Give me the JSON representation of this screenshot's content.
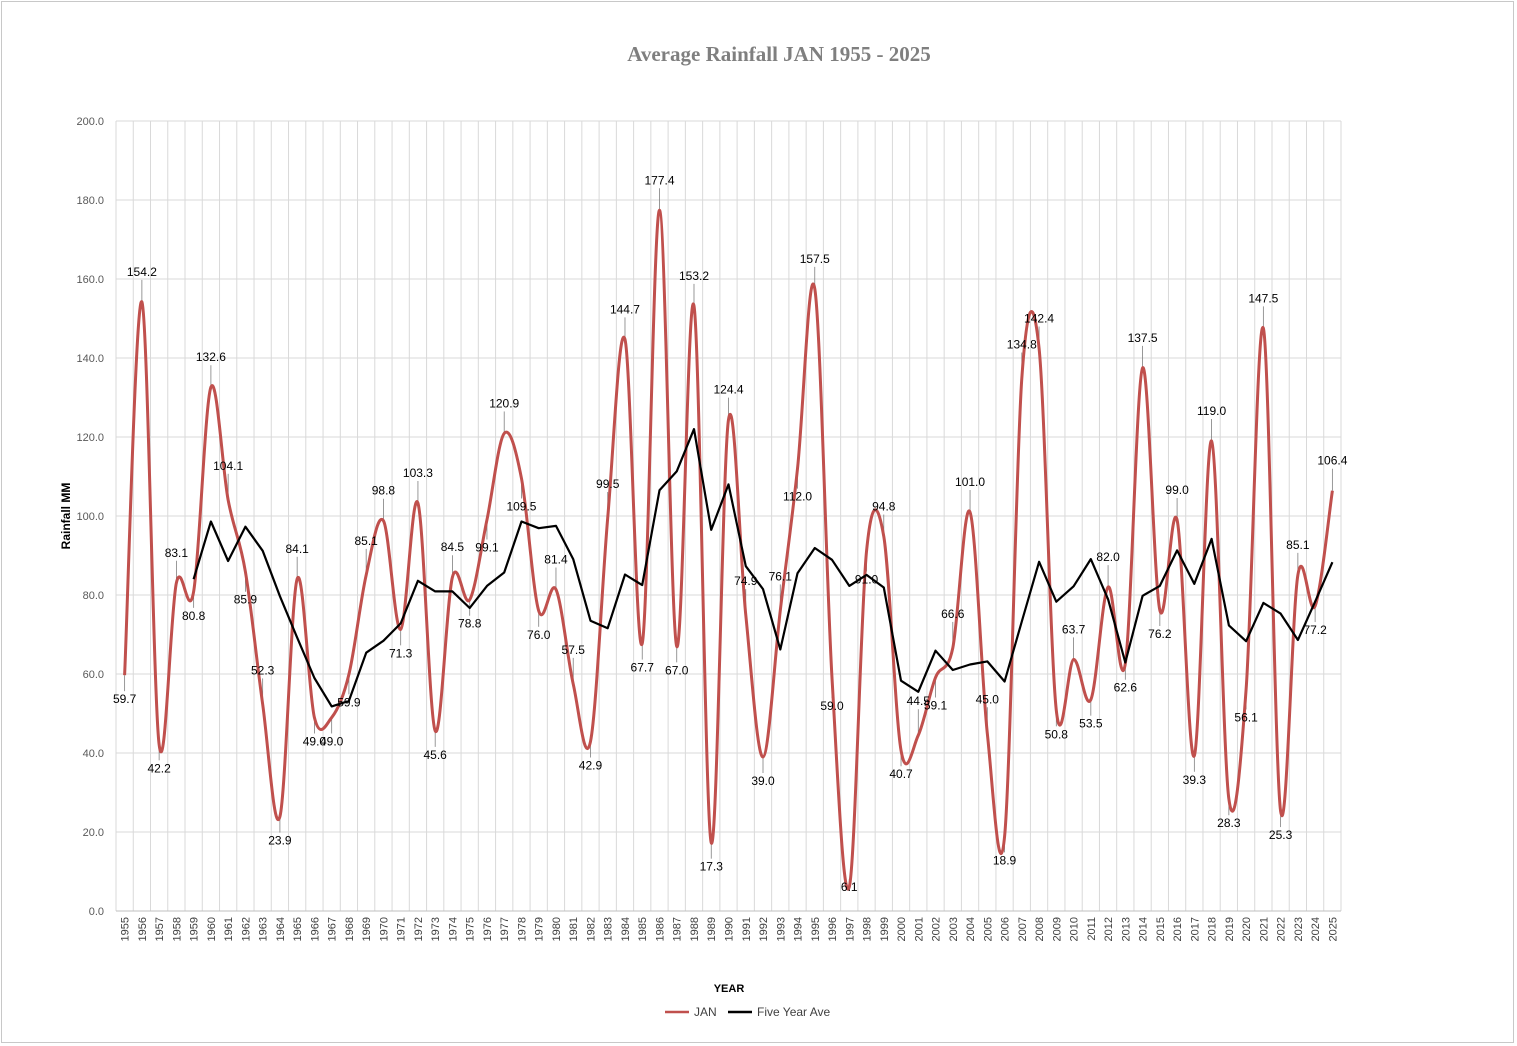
{
  "chart_data": {
    "type": "line",
    "title": "Average Rainfall JAN 1955 - 2025",
    "xlabel": "YEAR",
    "ylabel": "Rainfall MM",
    "ylim": [
      0,
      200
    ],
    "yticks": [
      "0.0",
      "20.0",
      "40.0",
      "60.0",
      "80.0",
      "100.0",
      "120.0",
      "140.0",
      "160.0",
      "180.0",
      "200.0"
    ],
    "x": [
      1955,
      1956,
      1957,
      1958,
      1959,
      1960,
      1961,
      1962,
      1963,
      1964,
      1965,
      1966,
      1967,
      1968,
      1969,
      1970,
      1971,
      1972,
      1973,
      1974,
      1975,
      1976,
      1977,
      1978,
      1979,
      1980,
      1981,
      1982,
      1983,
      1984,
      1985,
      1986,
      1987,
      1988,
      1989,
      1990,
      1991,
      1992,
      1993,
      1994,
      1995,
      1996,
      1997,
      1998,
      1999,
      2000,
      2001,
      2002,
      2003,
      2004,
      2005,
      2006,
      2007,
      2008,
      2009,
      2010,
      2011,
      2012,
      2013,
      2014,
      2015,
      2016,
      2017,
      2018,
      2019,
      2020,
      2021,
      2022,
      2023,
      2024,
      2025
    ],
    "grid": true,
    "legend_position": "bottom",
    "series": [
      {
        "name": "JAN",
        "color": "#c0504d",
        "smooth": true,
        "values": [
          59.7,
          154.2,
          42.2,
          83.1,
          80.8,
          132.6,
          104.1,
          85.9,
          52.3,
          23.9,
          84.1,
          49.0,
          49.0,
          59.9,
          85.1,
          98.8,
          71.3,
          103.3,
          45.6,
          84.5,
          78.8,
          99.1,
          120.9,
          109.5,
          76.0,
          81.4,
          57.5,
          42.9,
          99.5,
          144.7,
          67.7,
          177.4,
          67.0,
          153.2,
          17.3,
          124.4,
          74.9,
          39.0,
          76.1,
          112.0,
          157.5,
          59.0,
          6.1,
          91.0,
          94.8,
          40.7,
          44.5,
          59.1,
          66.6,
          101.0,
          45.0,
          18.9,
          134.8,
          142.4,
          50.8,
          63.7,
          53.5,
          82.0,
          62.6,
          137.5,
          76.2,
          99.0,
          39.3,
          119.0,
          28.3,
          56.1,
          147.5,
          25.3,
          85.1,
          77.2,
          106.4
        ]
      },
      {
        "name": "Five Year Ave",
        "color": "#000000",
        "smooth": false,
        "values": [
          null,
          null,
          null,
          null,
          84.0,
          98.6,
          88.6,
          97.3,
          91.2,
          79.7,
          69.2,
          59.0,
          51.8,
          53.2,
          65.4,
          68.4,
          72.8,
          83.6,
          80.9,
          80.9,
          76.7,
          82.3,
          85.7,
          98.6,
          96.9,
          97.5,
          89.1,
          73.5,
          71.6,
          85.2,
          82.5,
          106.5,
          111.3,
          122.0,
          96.5,
          108.0,
          87.3,
          81.5,
          66.2,
          85.5,
          91.9,
          88.9,
          82.3,
          85.1,
          81.9,
          58.3,
          55.5,
          65.9,
          61.0,
          62.4,
          63.2,
          58.1,
          73.3,
          88.4,
          78.3,
          82.2,
          89.1,
          78.9,
          62.9,
          79.8,
          82.3,
          91.3,
          82.8,
          94.2,
          72.3,
          68.3,
          78.0,
          75.3,
          68.6,
          78.3,
          88.3
        ]
      }
    ],
    "data_labels": [
      "59.7",
      "154.2",
      "42.2",
      "83.1",
      "80.8",
      "132.6",
      "104.1",
      "85.9",
      "52.3",
      "23.9",
      "84.1",
      "49.0",
      "49.0",
      "59.9",
      "85.1",
      "98.8",
      "71.3",
      "103.3",
      "45.6",
      "84.5",
      "78.8",
      "99.1",
      "120.9",
      "109.5",
      "76.0",
      "81.4",
      "57.5",
      "42.9",
      "99.5",
      "144.7",
      "67.7",
      "177.4",
      "67.0",
      "153.2",
      "17.3",
      "124.4",
      "74.9",
      "39.0",
      "76.1",
      "112.0",
      "157.5",
      "59.0",
      "6.1",
      "91.0",
      "94.8",
      "40.7",
      "44.5",
      "59.1",
      "66.6",
      "101.0",
      "45.0",
      "18.9",
      "134.8",
      "142.4",
      "50.8",
      "63.7",
      "53.5",
      "82.0",
      "62.6",
      "137.5",
      "76.2",
      "99.0",
      "39.3",
      "119.0",
      "28.3",
      "56.1",
      "147.5",
      "25.3",
      "85.1",
      "77.2",
      "106.4"
    ]
  }
}
